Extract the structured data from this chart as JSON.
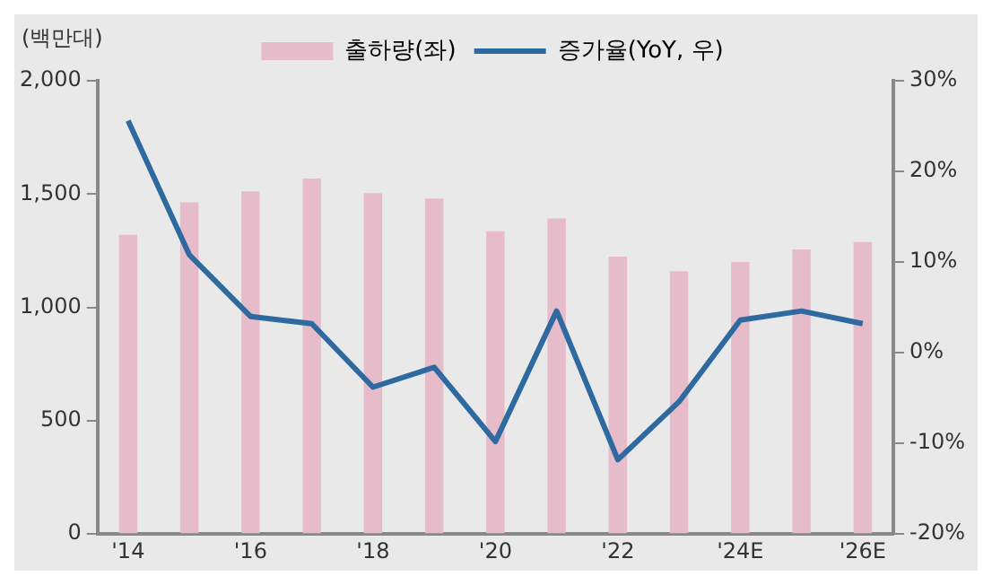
{
  "chart_data": {
    "type": "bar",
    "ylabel": "(백만대)",
    "categories": [
      "'14",
      null,
      "'16",
      null,
      "'18",
      null,
      "'20",
      null,
      "'22",
      null,
      "'24E",
      null,
      "'26E"
    ],
    "series": [
      {
        "name": "출하량(좌)",
        "color": "#e6bccb",
        "values": [
          1320,
          1464,
          1512,
          1568,
          1504,
          1480,
          1336,
          1392,
          1224,
          1160,
          1200,
          1256,
          1288
        ]
      },
      {
        "name": "증가율(YoY, 우)",
        "type": "line",
        "axis": "y2",
        "color": "#2e6aa0",
        "values": [
          25.6,
          10.8,
          4,
          3.2,
          -3.8,
          -1.6,
          -9.8,
          4.6,
          -11.8,
          -5.4,
          3.6,
          4.6,
          3.2
        ]
      }
    ],
    "ylim": [
      0,
      2000
    ],
    "yticks": [
      0,
      500,
      {
        "value": 1000,
        "label": "1,000"
      },
      {
        "value": 1500,
        "label": "1,500"
      },
      {
        "value": 2000,
        "label": "2,000"
      }
    ],
    "y2lim": [
      -20,
      30
    ],
    "y2ticks": [
      {
        "value": -20,
        "label": "-20%"
      },
      {
        "value": -10,
        "label": "-10%"
      },
      {
        "value": 0,
        "label": "0%"
      },
      {
        "value": 10,
        "label": "10%"
      },
      {
        "value": 20,
        "label": "20%"
      },
      {
        "value": 30,
        "label": "30%"
      }
    ],
    "grid": false,
    "legend": "top",
    "marker": "none",
    "line_style": "solid"
  }
}
